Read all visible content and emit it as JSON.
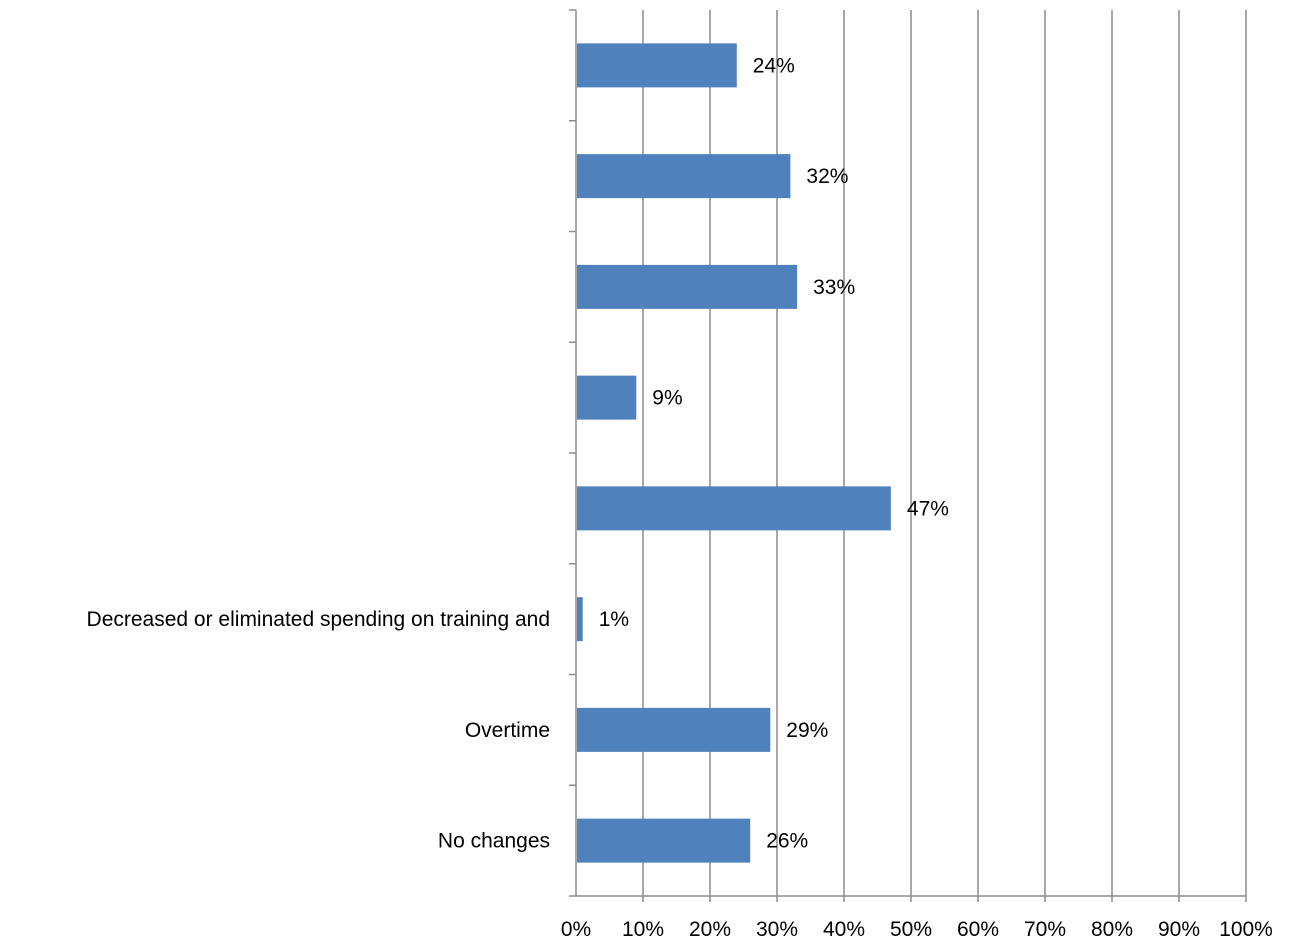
{
  "chart_data": {
    "type": "bar",
    "orientation": "horizontal",
    "categories": [
      "",
      "",
      "",
      "",
      "",
      "Decreased or eliminated spending on training and",
      "Overtime",
      "No changes"
    ],
    "values": [
      24,
      32,
      33,
      9,
      47,
      1,
      29,
      26
    ],
    "data_labels": [
      "24%",
      "32%",
      "33%",
      "9%",
      "47%",
      "1%",
      "29%",
      "26%"
    ],
    "x_ticks": [
      "0%",
      "10%",
      "20%",
      "30%",
      "40%",
      "50%",
      "60%",
      "70%",
      "80%",
      "90%",
      "100%"
    ],
    "xlim": [
      0,
      100
    ],
    "grid": true,
    "legend": "none",
    "bar_color": "#4f81bd",
    "grid_color": "#8c8c8c"
  }
}
